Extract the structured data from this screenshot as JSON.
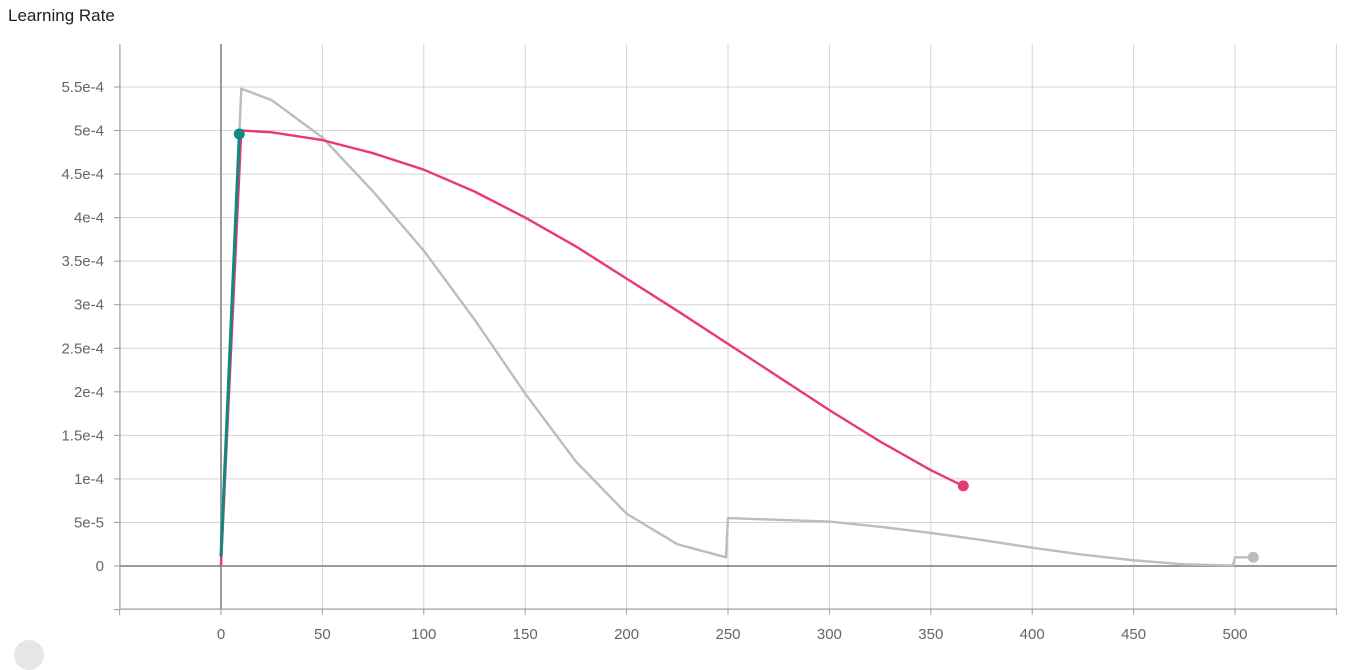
{
  "chart_data": {
    "type": "line",
    "title": "Learning Rate",
    "xlabel": "",
    "ylabel": "",
    "xlim": [
      -50,
      550
    ],
    "ylim": [
      -5e-05,
      0.0006
    ],
    "x_ticks": [
      "0",
      "50",
      "100",
      "150",
      "200",
      "250",
      "300",
      "350",
      "400",
      "450",
      "500"
    ],
    "y_ticks": [
      "0",
      "5e-5",
      "1e-4",
      "1.5e-4",
      "2e-4",
      "2.5e-4",
      "3e-4",
      "3.5e-4",
      "4e-4",
      "4.5e-4",
      "5e-4",
      "5.5e-4"
    ],
    "grid": true,
    "series": [
      {
        "color": "#bdbdbd",
        "values": [
          [
            0,
            1e-06
          ],
          [
            10,
            0.000548
          ],
          [
            25,
            0.000535
          ],
          [
            50,
            0.000492
          ],
          [
            75,
            0.00043
          ],
          [
            100,
            0.000362
          ],
          [
            125,
            0.000283
          ],
          [
            150,
            0.000198
          ],
          [
            175,
            0.00012
          ],
          [
            200,
            6e-05
          ],
          [
            225,
            2.5e-05
          ],
          [
            249,
            1e-05
          ],
          [
            250,
            5.5e-05
          ],
          [
            275,
            5.3e-05
          ],
          [
            300,
            5.1e-05
          ],
          [
            325,
            4.5e-05
          ],
          [
            350,
            3.8e-05
          ],
          [
            375,
            3e-05
          ],
          [
            400,
            2.1e-05
          ],
          [
            425,
            1.3e-05
          ],
          [
            450,
            6.6e-06
          ],
          [
            475,
            2e-06
          ],
          [
            499,
            5e-07
          ],
          [
            500,
            1e-05
          ],
          [
            509,
            1e-05
          ]
        ]
      },
      {
        "color": "#e8377a",
        "values": [
          [
            0,
            1e-06
          ],
          [
            10,
            0.0005
          ],
          [
            25,
            0.000498
          ],
          [
            50,
            0.000489
          ],
          [
            75,
            0.000474
          ],
          [
            100,
            0.000455
          ],
          [
            125,
            0.00043
          ],
          [
            150,
            0.0004
          ],
          [
            175,
            0.000367
          ],
          [
            200,
            0.00033
          ],
          [
            225,
            0.000293
          ],
          [
            250,
            0.000255
          ],
          [
            275,
            0.000217
          ],
          [
            300,
            0.000179
          ],
          [
            325,
            0.000143
          ],
          [
            350,
            0.00011
          ],
          [
            366,
            9.2e-05
          ]
        ]
      },
      {
        "color": "#12897f",
        "values": [
          [
            0,
            1.2e-05
          ],
          [
            9,
            0.000496
          ]
        ]
      }
    ]
  }
}
